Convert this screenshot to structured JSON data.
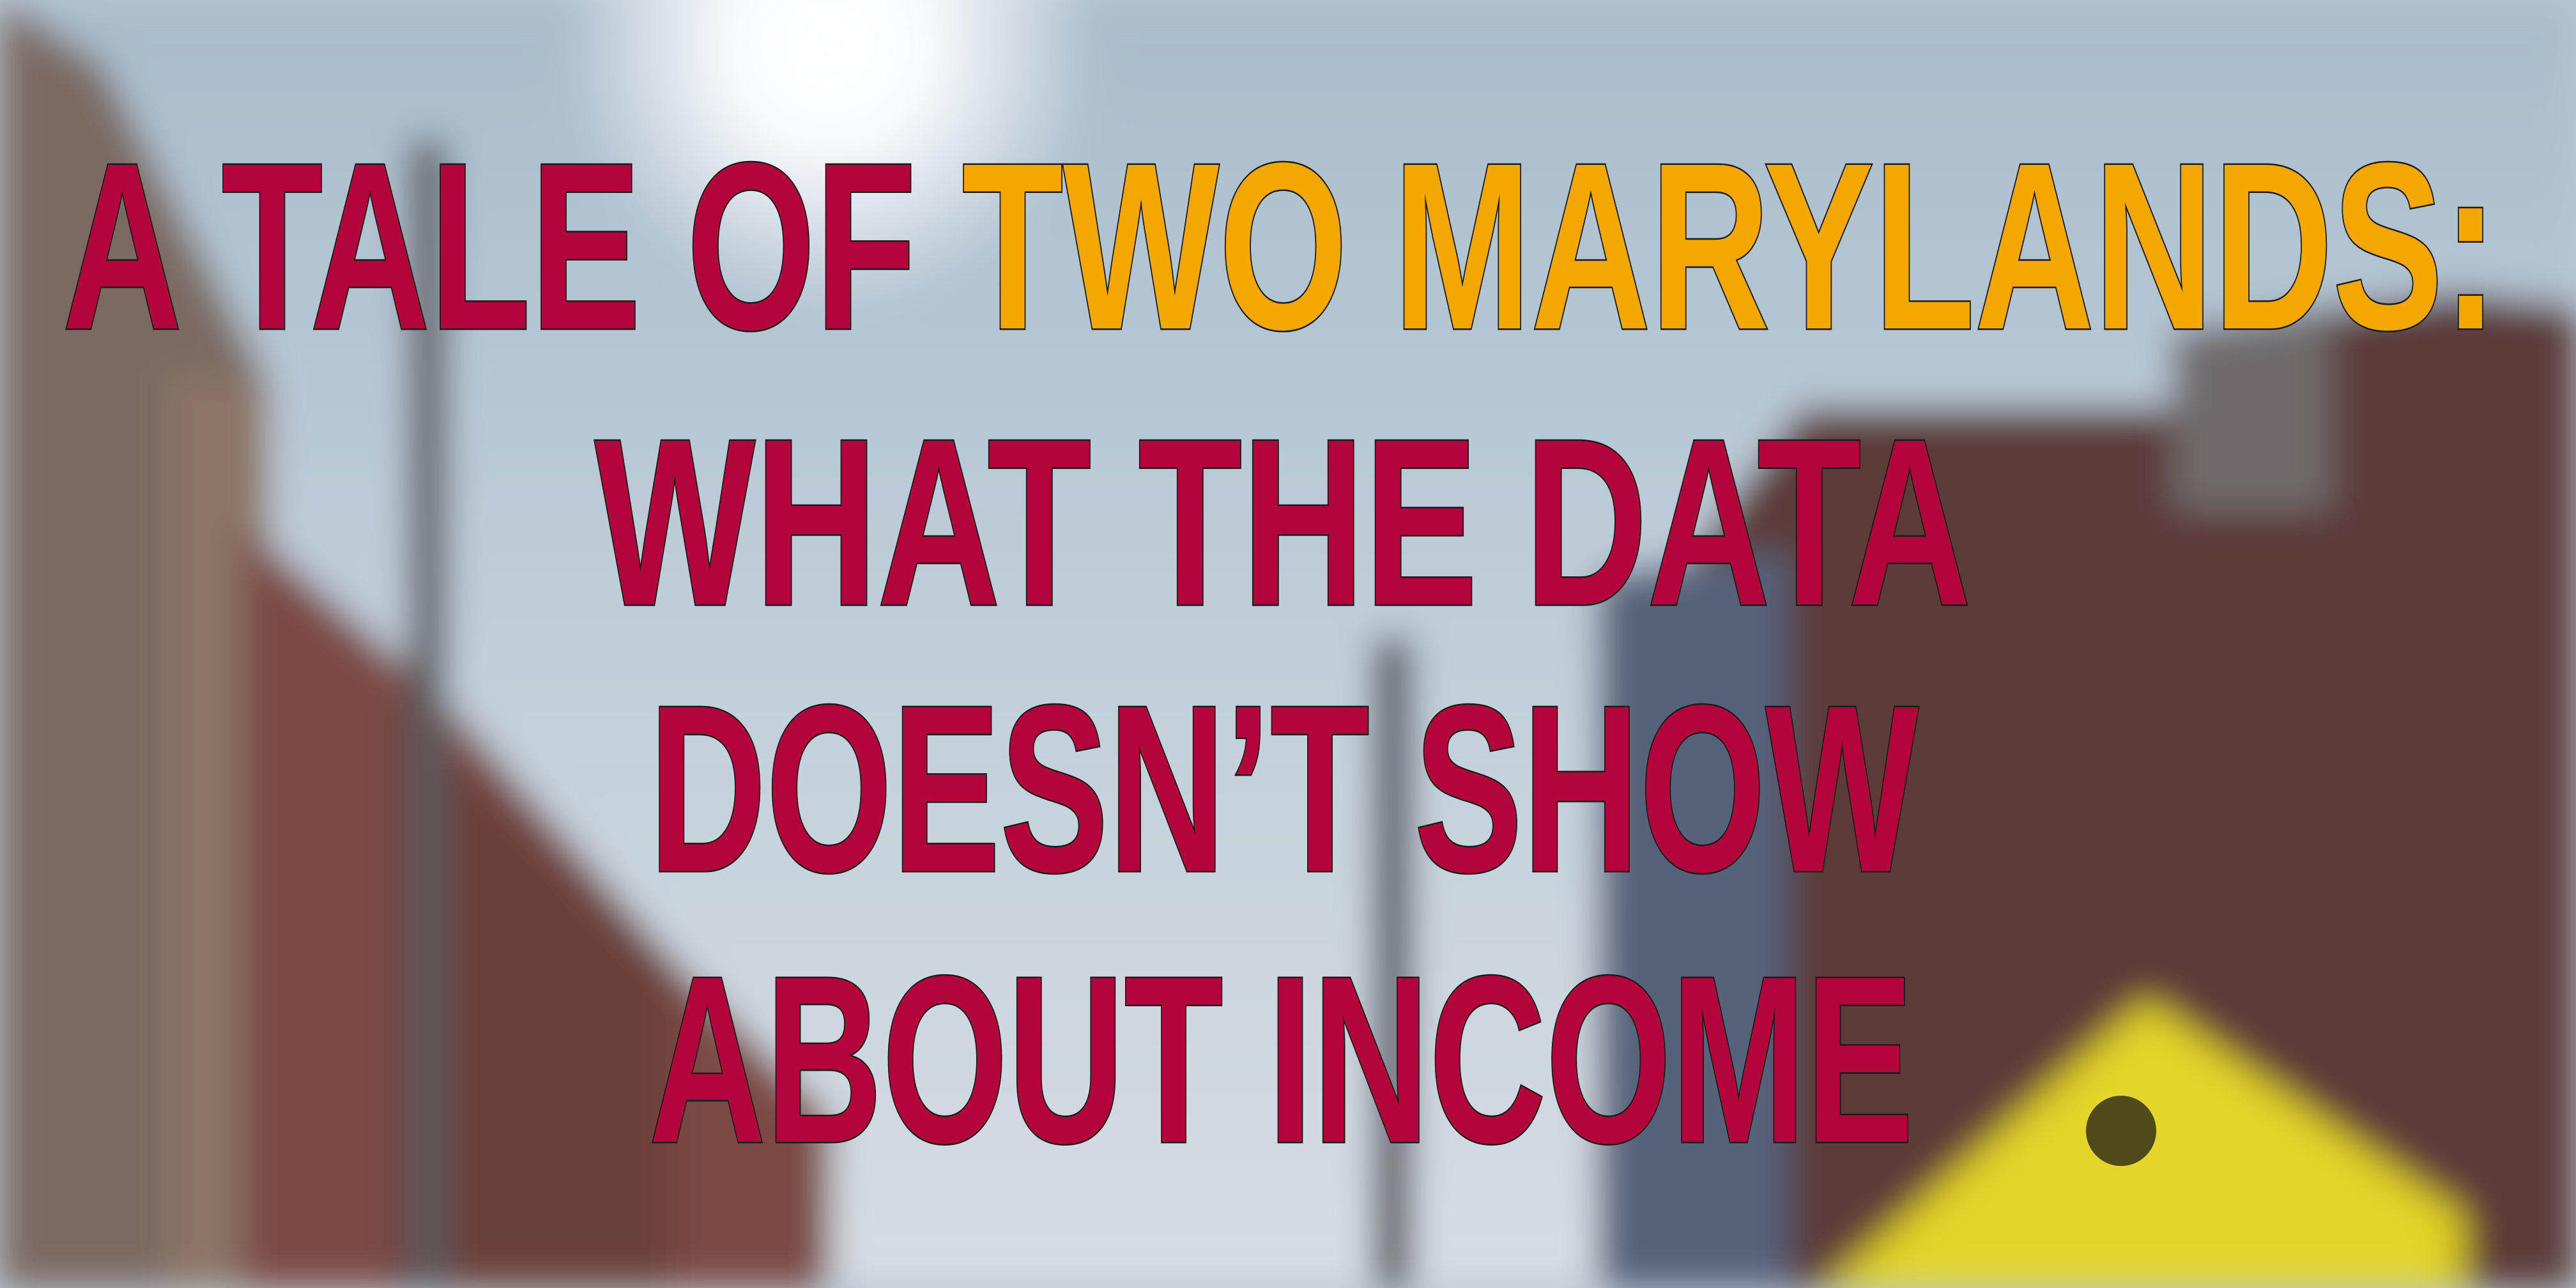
{
  "headline": {
    "line1": {
      "part1": "A TALE OF",
      "part2": "TWO MARYLANDS:"
    },
    "line2": "WHAT THE DATA",
    "line3": "DOESN’T SHOW",
    "line4": "ABOUT INCOME"
  }
}
